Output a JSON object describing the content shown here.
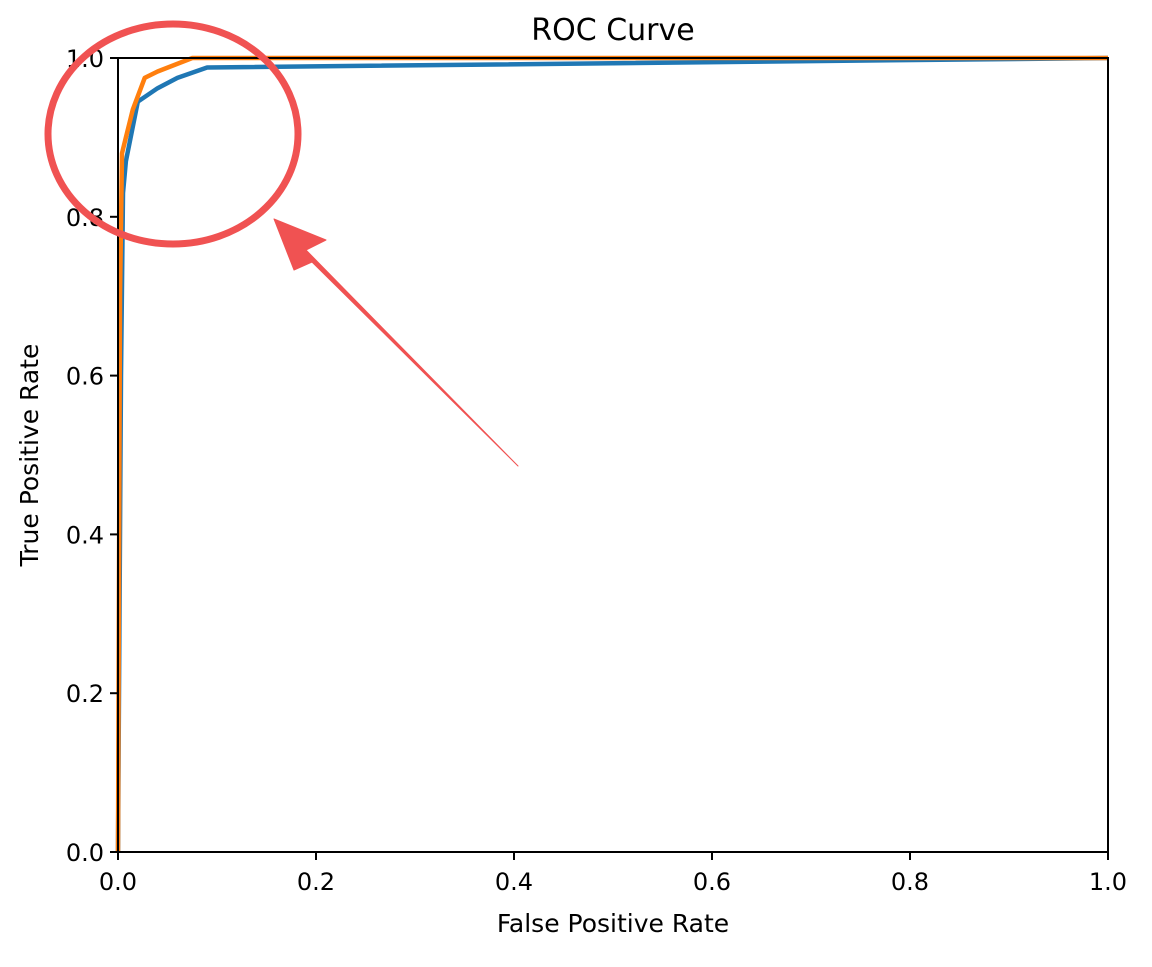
{
  "chart_data": {
    "type": "line",
    "title": "ROC Curve",
    "xlabel": "False Positive Rate",
    "ylabel": "True Positive Rate",
    "xlim": [
      0.0,
      1.0
    ],
    "ylim": [
      0.0,
      1.0
    ],
    "xticks": [
      "0.0",
      "0.2",
      "0.4",
      "0.6",
      "0.8",
      "1.0"
    ],
    "yticks": [
      "0.0",
      "0.2",
      "0.4",
      "0.6",
      "0.8",
      "1.0"
    ],
    "grid": false,
    "legend": "none",
    "series": [
      {
        "color": "#1f77b4",
        "x": [
          0.0,
          0.003,
          0.005,
          0.008,
          0.02,
          0.04,
          0.06,
          0.09,
          1.0
        ],
        "y": [
          0.0,
          0.6,
          0.83,
          0.87,
          0.945,
          0.962,
          0.975,
          0.988,
          1.0
        ]
      },
      {
        "color": "#ff7f0e",
        "x": [
          0.0,
          0.002,
          0.004,
          0.008,
          0.015,
          0.027,
          0.04,
          0.075,
          1.0
        ],
        "y": [
          0.0,
          0.7,
          0.88,
          0.9,
          0.935,
          0.975,
          0.983,
          1.0,
          1.0
        ]
      }
    ]
  },
  "annotations": {
    "color": "#f05252",
    "highlight": "circle",
    "pointer": "arrow"
  }
}
